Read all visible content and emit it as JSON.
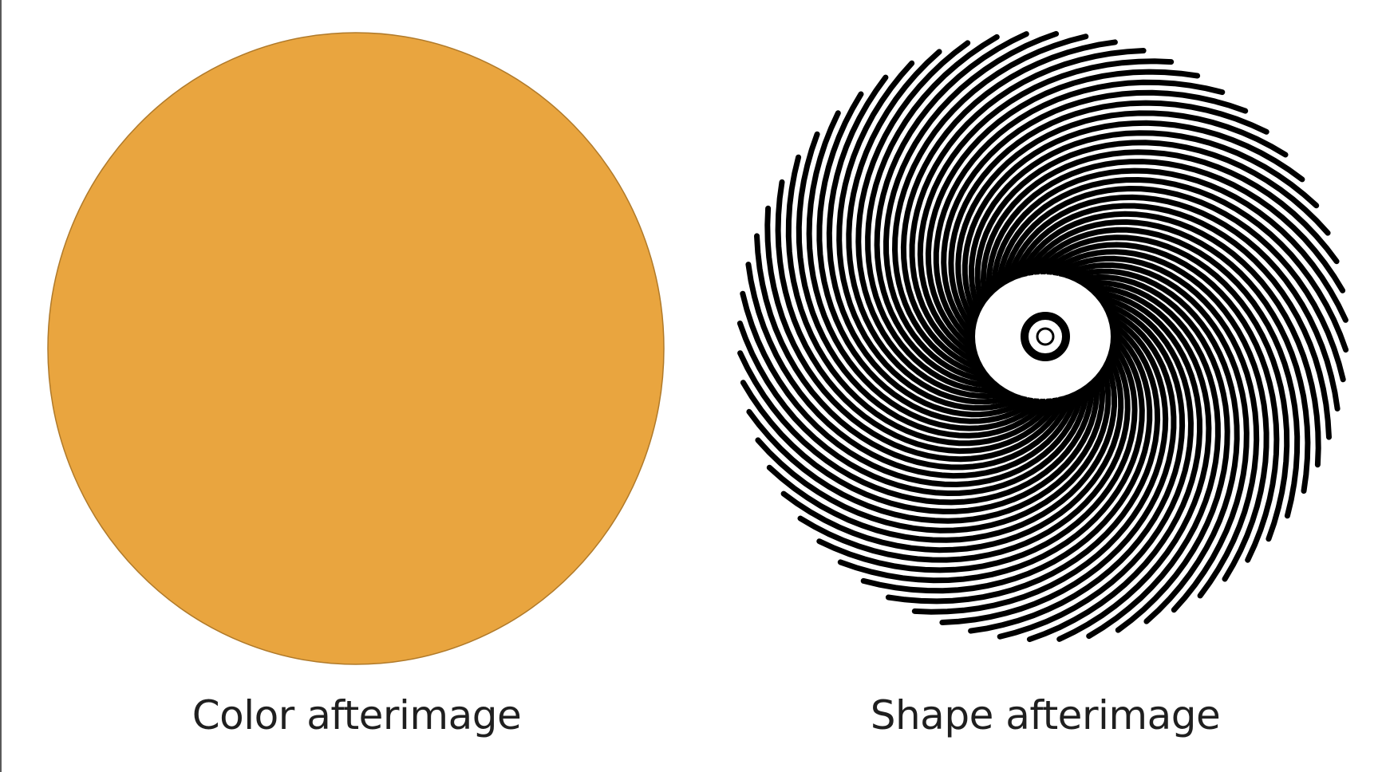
{
  "slide": {
    "left_panel": {
      "caption": "Color afterimage",
      "disc_fill": "#e9a53f",
      "disc_stroke": "#b07a2a"
    },
    "right_panel": {
      "caption": "Shape afterimage",
      "stripe_color": "#000000",
      "background_color": "#ffffff"
    },
    "frame_color": "#5a5a5a"
  }
}
